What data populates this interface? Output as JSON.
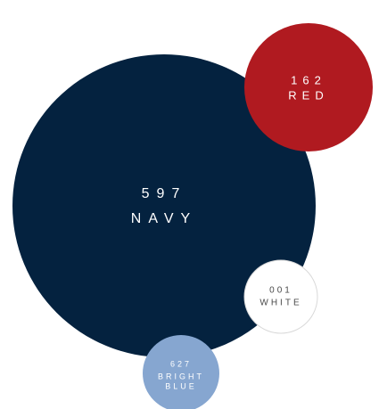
{
  "chart_data": {
    "type": "bubble",
    "title": "",
    "series": [
      {
        "code": "597",
        "name": "NAVY",
        "value": 597,
        "color": "#04223f",
        "text_color": "#ffffff"
      },
      {
        "code": "162",
        "name": "RED",
        "value": 162,
        "color": "#b01a20",
        "text_color": "#ffffff"
      },
      {
        "code": "001",
        "name": "WHITE",
        "value": 1,
        "color": "#ffffff",
        "text_color": "#4a4a4a"
      },
      {
        "code": "627",
        "name": "BRIGHT BLUE",
        "value": 627,
        "color": "#86a6d0",
        "text_color": "#ffffff"
      }
    ]
  }
}
